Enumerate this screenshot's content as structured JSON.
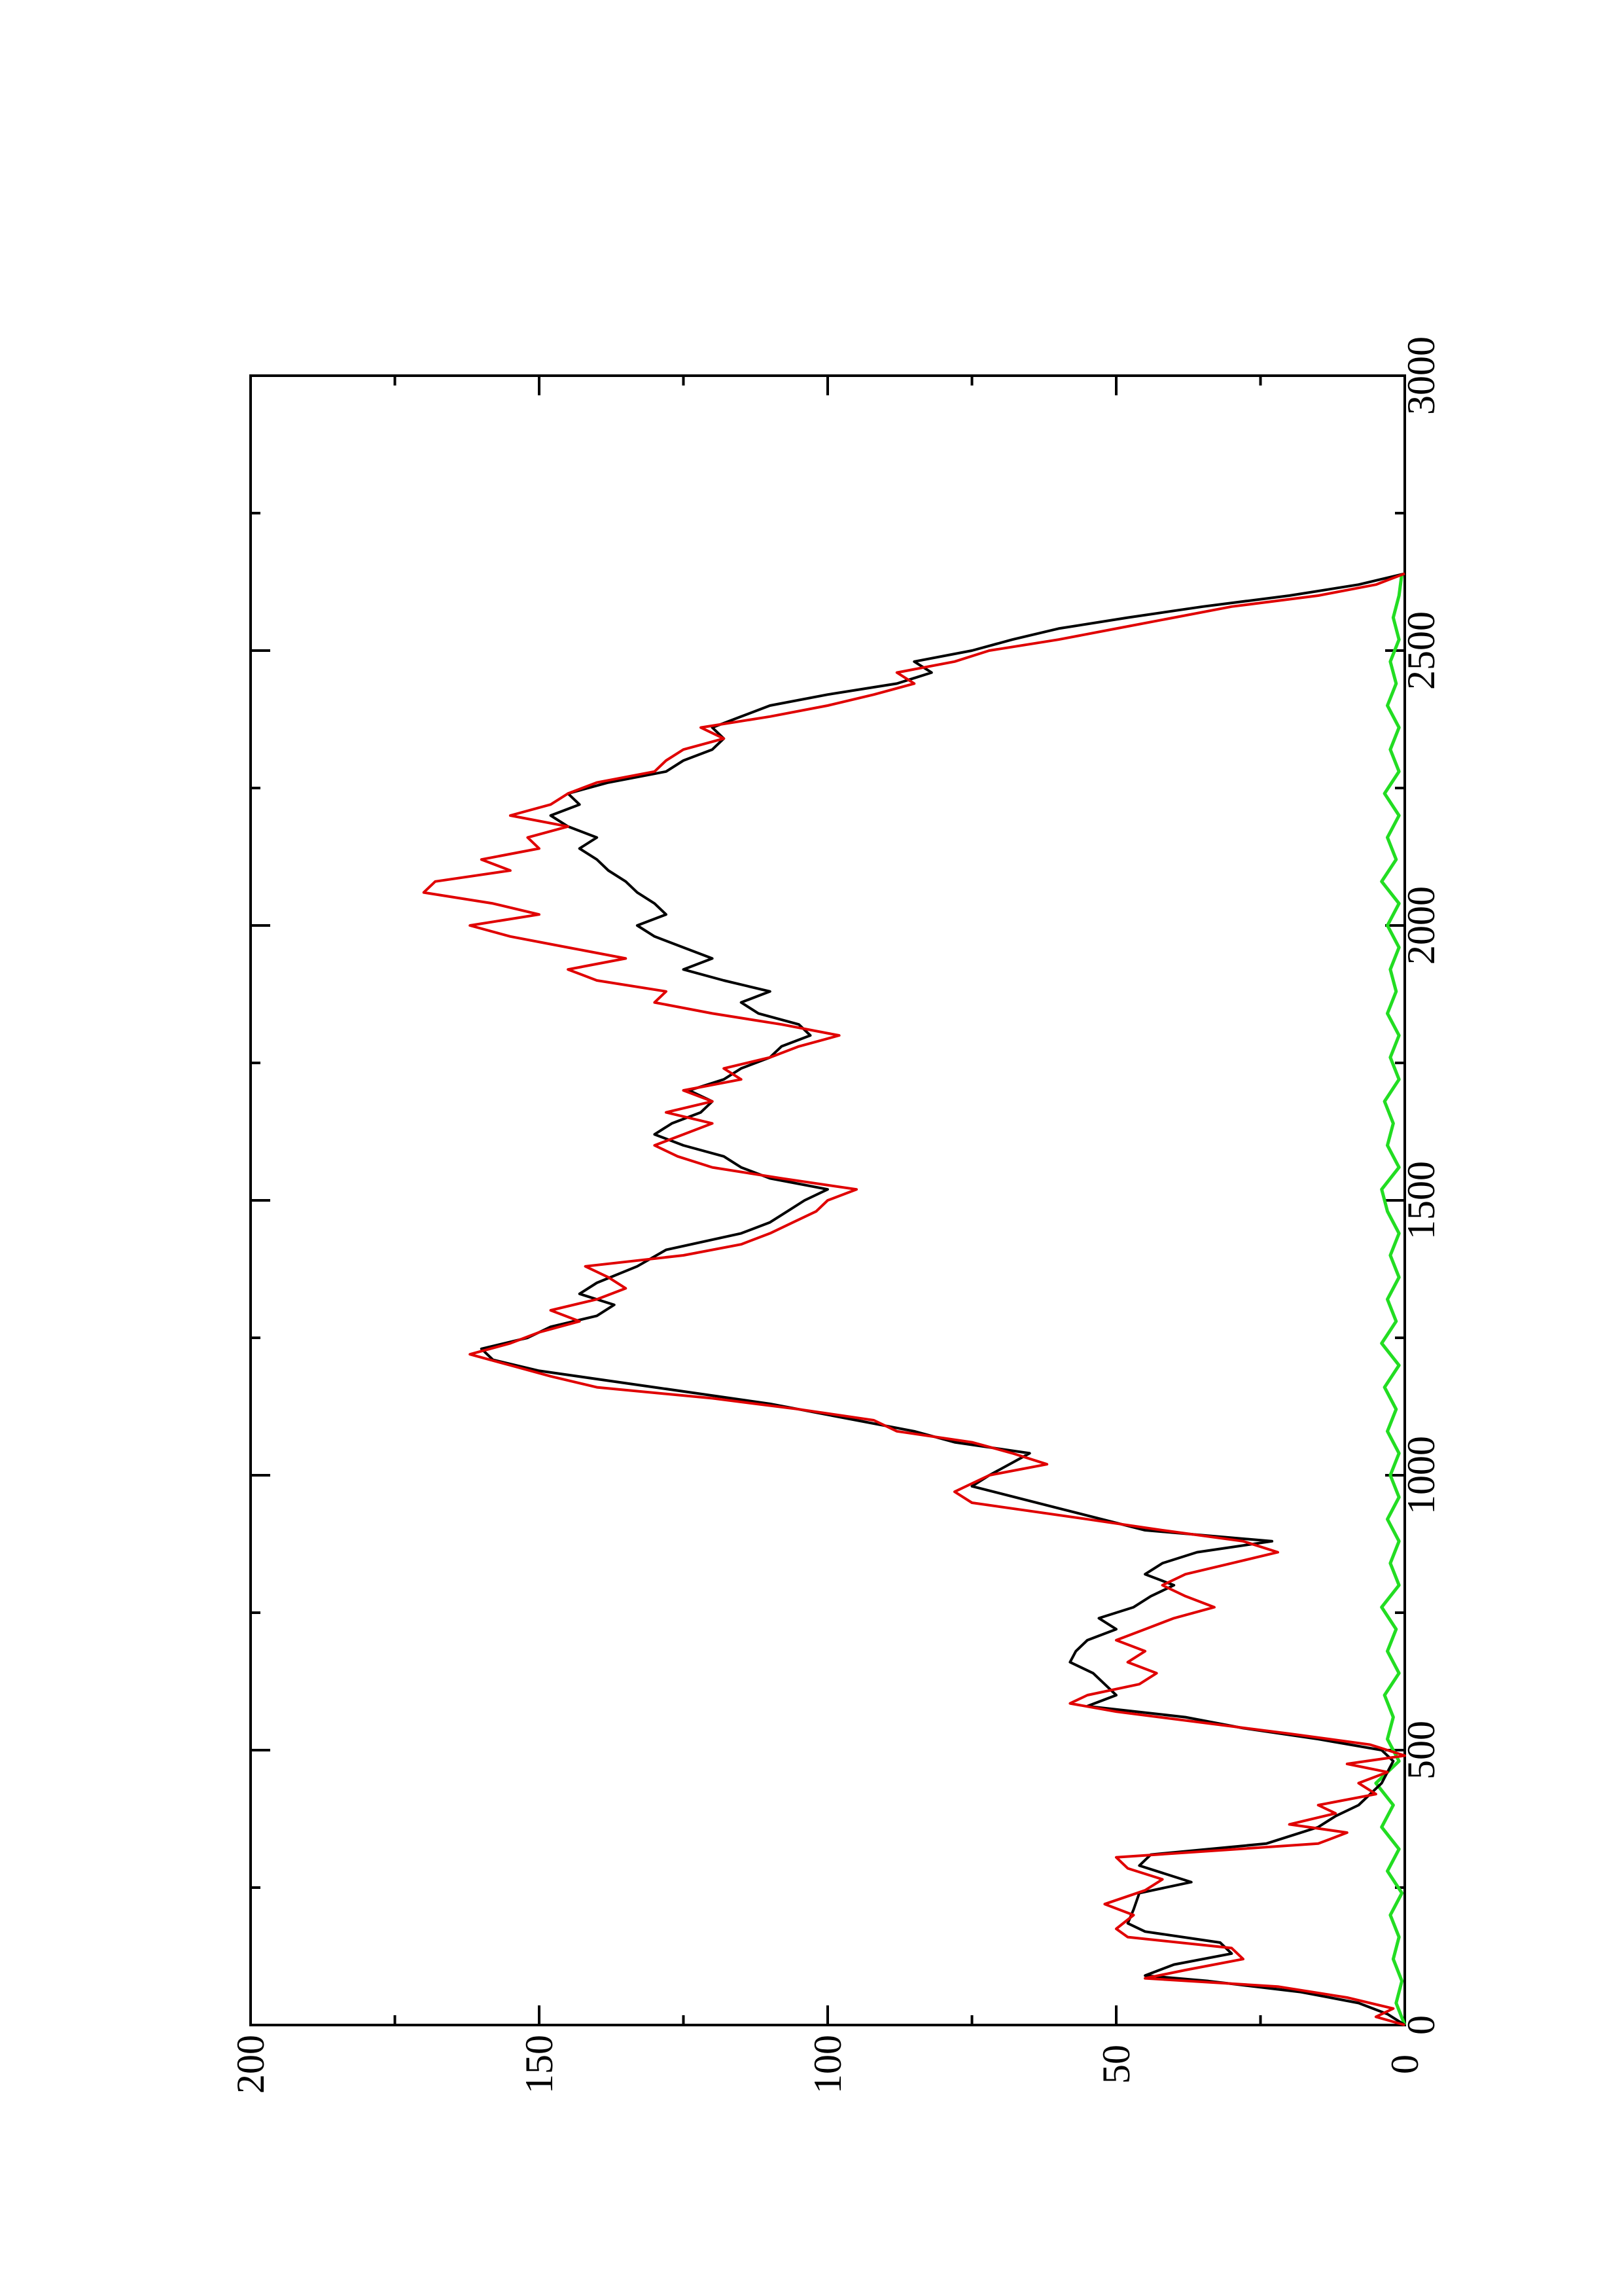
{
  "chart_data": {
    "type": "line",
    "title": "",
    "xlabel": "",
    "ylabel": "",
    "xlim": [
      0,
      3000
    ],
    "ylim": [
      0,
      200
    ],
    "orientation": "rotated-90-ccw",
    "x_ticks": [
      0,
      500,
      1000,
      1500,
      2000,
      2500,
      3000
    ],
    "y_ticks": [
      0,
      50,
      100,
      150,
      200
    ],
    "x_tick_labels": [
      "0",
      "500",
      "1000",
      "1500",
      "2000",
      "2500",
      "3000"
    ],
    "y_tick_labels": [
      "0",
      "50",
      "100",
      "150",
      "200"
    ],
    "grid": false,
    "legend": "none",
    "series": [
      {
        "color": "#000000",
        "points": [
          [
            0,
            0
          ],
          [
            20,
            3
          ],
          [
            40,
            8
          ],
          [
            60,
            18
          ],
          [
            80,
            34
          ],
          [
            90,
            45
          ],
          [
            110,
            40
          ],
          [
            130,
            30
          ],
          [
            150,
            32
          ],
          [
            170,
            45
          ],
          [
            185,
            48
          ],
          [
            210,
            47
          ],
          [
            240,
            46
          ],
          [
            260,
            37
          ],
          [
            290,
            46
          ],
          [
            310,
            44
          ],
          [
            330,
            24
          ],
          [
            360,
            15
          ],
          [
            380,
            12
          ],
          [
            400,
            8
          ],
          [
            420,
            6
          ],
          [
            440,
            4
          ],
          [
            460,
            3
          ],
          [
            480,
            2
          ],
          [
            500,
            4
          ],
          [
            520,
            15
          ],
          [
            540,
            28
          ],
          [
            560,
            38
          ],
          [
            580,
            55
          ],
          [
            600,
            50
          ],
          [
            620,
            52
          ],
          [
            640,
            54
          ],
          [
            660,
            58
          ],
          [
            680,
            57
          ],
          [
            700,
            55
          ],
          [
            720,
            50
          ],
          [
            740,
            53
          ],
          [
            760,
            47
          ],
          [
            780,
            44
          ],
          [
            800,
            40
          ],
          [
            820,
            45
          ],
          [
            840,
            42
          ],
          [
            860,
            36
          ],
          [
            880,
            23
          ],
          [
            900,
            45
          ],
          [
            940,
            60
          ],
          [
            980,
            75
          ],
          [
            1000,
            72
          ],
          [
            1040,
            65
          ],
          [
            1060,
            78
          ],
          [
            1080,
            85
          ],
          [
            1100,
            95
          ],
          [
            1130,
            110
          ],
          [
            1160,
            130
          ],
          [
            1190,
            150
          ],
          [
            1210,
            158
          ],
          [
            1230,
            160
          ],
          [
            1250,
            152
          ],
          [
            1270,
            148
          ],
          [
            1290,
            140
          ],
          [
            1310,
            137
          ],
          [
            1330,
            143
          ],
          [
            1350,
            140
          ],
          [
            1380,
            133
          ],
          [
            1410,
            128
          ],
          [
            1440,
            115
          ],
          [
            1460,
            110
          ],
          [
            1480,
            107
          ],
          [
            1500,
            104
          ],
          [
            1520,
            100
          ],
          [
            1540,
            110
          ],
          [
            1560,
            115
          ],
          [
            1580,
            118
          ],
          [
            1600,
            125
          ],
          [
            1620,
            130
          ],
          [
            1640,
            127
          ],
          [
            1660,
            122
          ],
          [
            1680,
            120
          ],
          [
            1700,
            124
          ],
          [
            1720,
            118
          ],
          [
            1740,
            115
          ],
          [
            1760,
            110
          ],
          [
            1780,
            108
          ],
          [
            1800,
            103
          ],
          [
            1820,
            105
          ],
          [
            1840,
            112
          ],
          [
            1860,
            115
          ],
          [
            1880,
            110
          ],
          [
            1900,
            118
          ],
          [
            1920,
            125
          ],
          [
            1940,
            120
          ],
          [
            1960,
            125
          ],
          [
            1980,
            130
          ],
          [
            2000,
            133
          ],
          [
            2020,
            128
          ],
          [
            2040,
            130
          ],
          [
            2060,
            133
          ],
          [
            2080,
            135
          ],
          [
            2100,
            138
          ],
          [
            2120,
            140
          ],
          [
            2140,
            143
          ],
          [
            2160,
            140
          ],
          [
            2180,
            145
          ],
          [
            2200,
            148
          ],
          [
            2220,
            143
          ],
          [
            2240,
            145
          ],
          [
            2260,
            138
          ],
          [
            2280,
            128
          ],
          [
            2300,
            125
          ],
          [
            2320,
            120
          ],
          [
            2340,
            118
          ],
          [
            2360,
            120
          ],
          [
            2380,
            115
          ],
          [
            2400,
            110
          ],
          [
            2420,
            100
          ],
          [
            2440,
            88
          ],
          [
            2460,
            82
          ],
          [
            2480,
            85
          ],
          [
            2500,
            75
          ],
          [
            2520,
            68
          ],
          [
            2540,
            60
          ],
          [
            2560,
            48
          ],
          [
            2580,
            35
          ],
          [
            2600,
            20
          ],
          [
            2620,
            8
          ],
          [
            2640,
            0
          ]
        ]
      },
      {
        "color": "#e00000",
        "points": [
          [
            0,
            0
          ],
          [
            15,
            5
          ],
          [
            30,
            2
          ],
          [
            50,
            10
          ],
          [
            70,
            22
          ],
          [
            85,
            45
          ],
          [
            100,
            38
          ],
          [
            120,
            28
          ],
          [
            140,
            30
          ],
          [
            160,
            48
          ],
          [
            175,
            50
          ],
          [
            200,
            47
          ],
          [
            220,
            52
          ],
          [
            245,
            45
          ],
          [
            265,
            42
          ],
          [
            285,
            48
          ],
          [
            305,
            50
          ],
          [
            330,
            15
          ],
          [
            350,
            10
          ],
          [
            365,
            20
          ],
          [
            385,
            12
          ],
          [
            400,
            15
          ],
          [
            420,
            5
          ],
          [
            440,
            8
          ],
          [
            460,
            3
          ],
          [
            475,
            10
          ],
          [
            490,
            0
          ],
          [
            510,
            6
          ],
          [
            530,
            20
          ],
          [
            550,
            35
          ],
          [
            570,
            50
          ],
          [
            585,
            58
          ],
          [
            600,
            55
          ],
          [
            620,
            46
          ],
          [
            640,
            43
          ],
          [
            660,
            48
          ],
          [
            680,
            45
          ],
          [
            700,
            50
          ],
          [
            720,
            45
          ],
          [
            740,
            40
          ],
          [
            760,
            33
          ],
          [
            780,
            38
          ],
          [
            800,
            42
          ],
          [
            820,
            38
          ],
          [
            840,
            30
          ],
          [
            860,
            22
          ],
          [
            880,
            28
          ],
          [
            900,
            42
          ],
          [
            920,
            55
          ],
          [
            950,
            75
          ],
          [
            970,
            78
          ],
          [
            1000,
            72
          ],
          [
            1020,
            62
          ],
          [
            1040,
            68
          ],
          [
            1060,
            75
          ],
          [
            1080,
            88
          ],
          [
            1100,
            92
          ],
          [
            1120,
            105
          ],
          [
            1140,
            120
          ],
          [
            1160,
            140
          ],
          [
            1180,
            148
          ],
          [
            1200,
            155
          ],
          [
            1220,
            162
          ],
          [
            1240,
            155
          ],
          [
            1260,
            150
          ],
          [
            1280,
            143
          ],
          [
            1300,
            148
          ],
          [
            1320,
            140
          ],
          [
            1340,
            135
          ],
          [
            1360,
            138
          ],
          [
            1380,
            142
          ],
          [
            1400,
            125
          ],
          [
            1420,
            115
          ],
          [
            1440,
            110
          ],
          [
            1460,
            106
          ],
          [
            1480,
            102
          ],
          [
            1500,
            100
          ],
          [
            1520,
            95
          ],
          [
            1540,
            108
          ],
          [
            1560,
            120
          ],
          [
            1580,
            126
          ],
          [
            1600,
            130
          ],
          [
            1620,
            125
          ],
          [
            1640,
            120
          ],
          [
            1660,
            128
          ],
          [
            1680,
            120
          ],
          [
            1700,
            125
          ],
          [
            1720,
            115
          ],
          [
            1740,
            118
          ],
          [
            1760,
            110
          ],
          [
            1780,
            105
          ],
          [
            1800,
            98
          ],
          [
            1820,
            108
          ],
          [
            1840,
            120
          ],
          [
            1860,
            130
          ],
          [
            1880,
            128
          ],
          [
            1900,
            140
          ],
          [
            1920,
            145
          ],
          [
            1940,
            135
          ],
          [
            1960,
            145
          ],
          [
            1980,
            155
          ],
          [
            2000,
            162
          ],
          [
            2020,
            150
          ],
          [
            2040,
            158
          ],
          [
            2060,
            170
          ],
          [
            2080,
            168
          ],
          [
            2100,
            155
          ],
          [
            2120,
            160
          ],
          [
            2140,
            150
          ],
          [
            2160,
            152
          ],
          [
            2180,
            145
          ],
          [
            2200,
            155
          ],
          [
            2220,
            148
          ],
          [
            2240,
            145
          ],
          [
            2260,
            140
          ],
          [
            2280,
            130
          ],
          [
            2300,
            128
          ],
          [
            2320,
            125
          ],
          [
            2340,
            118
          ],
          [
            2360,
            122
          ],
          [
            2380,
            110
          ],
          [
            2400,
            100
          ],
          [
            2420,
            92
          ],
          [
            2440,
            85
          ],
          [
            2460,
            88
          ],
          [
            2480,
            78
          ],
          [
            2500,
            72
          ],
          [
            2520,
            60
          ],
          [
            2540,
            50
          ],
          [
            2560,
            40
          ],
          [
            2580,
            30
          ],
          [
            2600,
            15
          ],
          [
            2620,
            5
          ],
          [
            2640,
            0
          ]
        ]
      },
      {
        "color": "#22dd22",
        "points": [
          [
            0,
            0
          ],
          [
            40,
            1.5
          ],
          [
            80,
            0.5
          ],
          [
            120,
            2
          ],
          [
            160,
            1
          ],
          [
            200,
            2.5
          ],
          [
            240,
            0.5
          ],
          [
            280,
            3
          ],
          [
            320,
            1
          ],
          [
            360,
            4
          ],
          [
            400,
            2
          ],
          [
            440,
            5
          ],
          [
            480,
            1
          ],
          [
            520,
            3
          ],
          [
            560,
            2
          ],
          [
            600,
            3.5
          ],
          [
            640,
            1
          ],
          [
            680,
            3
          ],
          [
            720,
            1.5
          ],
          [
            760,
            4
          ],
          [
            800,
            1
          ],
          [
            840,
            2.5
          ],
          [
            880,
            1
          ],
          [
            920,
            3
          ],
          [
            960,
            1
          ],
          [
            1000,
            2.5
          ],
          [
            1040,
            1
          ],
          [
            1080,
            3
          ],
          [
            1120,
            1.5
          ],
          [
            1160,
            3.5
          ],
          [
            1200,
            1
          ],
          [
            1240,
            4
          ],
          [
            1280,
            1.5
          ],
          [
            1320,
            3
          ],
          [
            1360,
            1
          ],
          [
            1400,
            2.5
          ],
          [
            1440,
            1
          ],
          [
            1480,
            3
          ],
          [
            1520,
            4
          ],
          [
            1560,
            1
          ],
          [
            1600,
            3
          ],
          [
            1640,
            2
          ],
          [
            1680,
            3.5
          ],
          [
            1720,
            1
          ],
          [
            1760,
            2.5
          ],
          [
            1800,
            1
          ],
          [
            1840,
            3
          ],
          [
            1880,
            1.5
          ],
          [
            1920,
            2.5
          ],
          [
            1960,
            1
          ],
          [
            2000,
            3
          ],
          [
            2040,
            1
          ],
          [
            2080,
            4
          ],
          [
            2120,
            1.5
          ],
          [
            2160,
            3
          ],
          [
            2200,
            1
          ],
          [
            2240,
            3.5
          ],
          [
            2280,
            1
          ],
          [
            2320,
            2.5
          ],
          [
            2360,
            1
          ],
          [
            2400,
            3
          ],
          [
            2440,
            1.5
          ],
          [
            2480,
            2.5
          ],
          [
            2520,
            1
          ],
          [
            2560,
            2
          ],
          [
            2600,
            1
          ],
          [
            2640,
            0.5
          ]
        ]
      }
    ]
  }
}
